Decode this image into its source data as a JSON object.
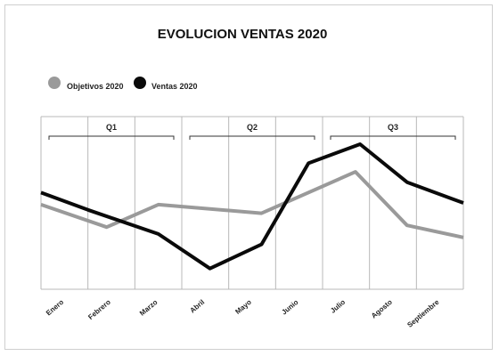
{
  "chart_data": {
    "type": "line",
    "title": "EVOLUCION VENTAS 2020",
    "categories": [
      "Enero",
      "Febrero",
      "Marzo",
      "Abril",
      "Mayo",
      "Junio",
      "Julio",
      "Agosto",
      "Septiembre"
    ],
    "series": [
      {
        "name": "Objetivos 2020",
        "color": "#9a9a9a",
        "values": [
          {
            "x": 0.0,
            "y": 49
          },
          {
            "x": 1.4,
            "y": 36
          },
          {
            "x": 2.5,
            "y": 49
          },
          {
            "x": 4.7,
            "y": 44
          },
          {
            "x": 6.7,
            "y": 68
          },
          {
            "x": 7.8,
            "y": 37
          },
          {
            "x": 9.0,
            "y": 30
          }
        ]
      },
      {
        "name": "Ventas 2020",
        "color": "#0a0a0a",
        "values": [
          {
            "x": 0.0,
            "y": 56
          },
          {
            "x": 1.0,
            "y": 46
          },
          {
            "x": 2.5,
            "y": 32
          },
          {
            "x": 3.6,
            "y": 12
          },
          {
            "x": 4.7,
            "y": 26
          },
          {
            "x": 5.7,
            "y": 73
          },
          {
            "x": 6.8,
            "y": 84
          },
          {
            "x": 7.8,
            "y": 62
          },
          {
            "x": 9.0,
            "y": 50
          }
        ]
      }
    ],
    "quarters": [
      {
        "label": "Q1",
        "start": 0,
        "end": 3
      },
      {
        "label": "Q2",
        "start": 3,
        "end": 6
      },
      {
        "label": "Q3",
        "start": 6,
        "end": 9
      }
    ],
    "xlim": [
      0,
      9
    ],
    "ylim": [
      0,
      100
    ],
    "xlabel": "",
    "ylabel": "",
    "grid": "vertical",
    "legend_position": "top-left"
  }
}
